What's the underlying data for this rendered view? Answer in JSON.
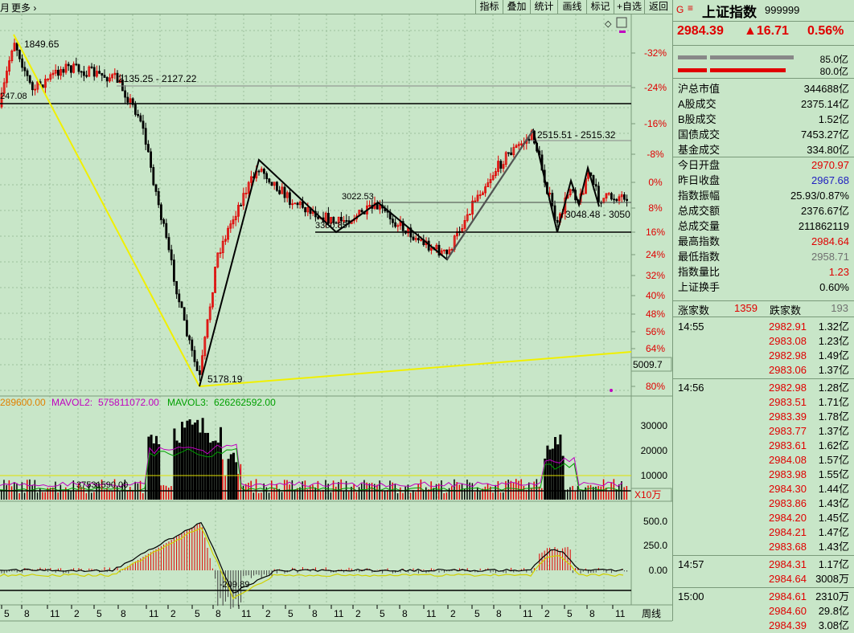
{
  "toolbar": {
    "left_text": "月",
    "more": "更多",
    "more_icon": "chevron-right",
    "buttons": [
      "指标",
      "叠加",
      "统计",
      "画线",
      "标记",
      "+自选",
      "返回"
    ]
  },
  "main_chart": {
    "pct_ticks": [
      "-32%",
      "-24%",
      "-16%",
      "-8%",
      "0%",
      "8%",
      "16%",
      "24%",
      "32%",
      "40%",
      "48%",
      "56%",
      "64%",
      "80%"
    ],
    "annotations": {
      "high_label": "1849.65",
      "range_label": "2135.25 - 2127.22",
      "left_label": "247.08",
      "right_range_label": "2515.51 - 2515.32",
      "mid_label": "3022.53",
      "mid_left_label": "3360.85",
      "right_bottom_label": "3048.48 - 3050",
      "low_label": "5178.19",
      "side_box": "5009.7"
    }
  },
  "volume_chart": {
    "legend_mavol1": "289600.00",
    "legend_mavol2_label": "MAVOL2:",
    "legend_mavol2": "575811072.00",
    "legend_mavol3_label": "MAVOL3:",
    "legend_mavol3": "626262592.00",
    "ticks": [
      "30000",
      "20000",
      "10000"
    ],
    "unit": "X10万",
    "line_label": "37531590.00"
  },
  "macd_chart": {
    "ticks": [
      "500.0",
      "250.0",
      "0.00"
    ],
    "low_label": "-209.89"
  },
  "x_axis": {
    "labels": [
      "5",
      "8",
      "11",
      "2",
      "5",
      "8",
      "11",
      "2",
      "5",
      "8",
      "11",
      "2",
      "5",
      "8",
      "11",
      "2",
      "5",
      "8",
      "11",
      "2",
      "5",
      "8",
      "11",
      "2",
      "5",
      "8",
      "11"
    ],
    "period": "周线"
  },
  "colors": {
    "bg": "#c8e6c8",
    "up": "#e00000",
    "down": "#000000",
    "trend_yellow": "#f0f000",
    "mavol2": "#c000c0",
    "mavol3": "#00a000"
  },
  "quote": {
    "flag": "G",
    "icon": "menu-icon",
    "name": "上证指数",
    "code": "999999",
    "price": "2984.39",
    "change": "▲16.71",
    "change_pct": "0.56%",
    "bar1_value": "85.0亿",
    "bar2_value": "80.0亿",
    "stats": [
      {
        "label": "沪总市值",
        "value": "344688亿",
        "color": ""
      },
      {
        "label": "A股成交",
        "value": "2375.14亿",
        "color": ""
      },
      {
        "label": "B股成交",
        "value": "1.52亿",
        "color": ""
      },
      {
        "label": "国债成交",
        "value": "7453.27亿",
        "color": ""
      },
      {
        "label": "基金成交",
        "value": "334.80亿",
        "color": ""
      },
      {
        "label": "今日开盘",
        "value": "2970.97",
        "color": "red"
      },
      {
        "label": "昨日收盘",
        "value": "2967.68",
        "color": "blue"
      },
      {
        "label": "指数振幅",
        "value": "25.93/0.87%",
        "color": ""
      },
      {
        "label": "总成交额",
        "value": "2376.67亿",
        "color": ""
      },
      {
        "label": "总成交量",
        "value": "211862119",
        "color": ""
      },
      {
        "label": "最高指数",
        "value": "2984.64",
        "color": "red"
      },
      {
        "label": "最低指数",
        "value": "2958.71",
        "color": "grey"
      },
      {
        "label": "指数量比",
        "value": "1.23",
        "color": "red"
      },
      {
        "label": "上证换手",
        "value": "0.60%",
        "color": ""
      }
    ],
    "rise_label": "涨家数",
    "rise_count": "1359",
    "fall_label": "跌家数",
    "fall_count": "193",
    "ticks": [
      {
        "time": "14:55",
        "price": "2982.91",
        "vol": "1.32亿"
      },
      {
        "time": "",
        "price": "2983.08",
        "vol": "1.23亿"
      },
      {
        "time": "",
        "price": "2982.98",
        "vol": "1.49亿"
      },
      {
        "time": "",
        "price": "2983.06",
        "vol": "1.37亿"
      },
      {
        "time": "14:56",
        "price": "2982.98",
        "vol": "1.28亿"
      },
      {
        "time": "",
        "price": "2983.51",
        "vol": "1.71亿"
      },
      {
        "time": "",
        "price": "2983.39",
        "vol": "1.78亿"
      },
      {
        "time": "",
        "price": "2983.77",
        "vol": "1.37亿"
      },
      {
        "time": "",
        "price": "2983.61",
        "vol": "1.62亿"
      },
      {
        "time": "",
        "price": "2984.08",
        "vol": "1.57亿"
      },
      {
        "time": "",
        "price": "2983.98",
        "vol": "1.55亿"
      },
      {
        "time": "",
        "price": "2984.30",
        "vol": "1.44亿"
      },
      {
        "time": "",
        "price": "2983.86",
        "vol": "1.43亿"
      },
      {
        "time": "",
        "price": "2984.20",
        "vol": "1.45亿"
      },
      {
        "time": "",
        "price": "2984.21",
        "vol": "1.47亿"
      },
      {
        "time": "",
        "price": "2983.68",
        "vol": "1.43亿"
      },
      {
        "time": "14:57",
        "price": "2984.31",
        "vol": "1.17亿"
      },
      {
        "time": "",
        "price": "2984.64",
        "vol": "3008万"
      },
      {
        "time": "15:00",
        "price": "2984.61",
        "vol": "2310万"
      },
      {
        "time": "",
        "price": "2984.60",
        "vol": "29.8亿"
      },
      {
        "time": "",
        "price": "2984.39",
        "vol": "3.08亿"
      }
    ]
  }
}
